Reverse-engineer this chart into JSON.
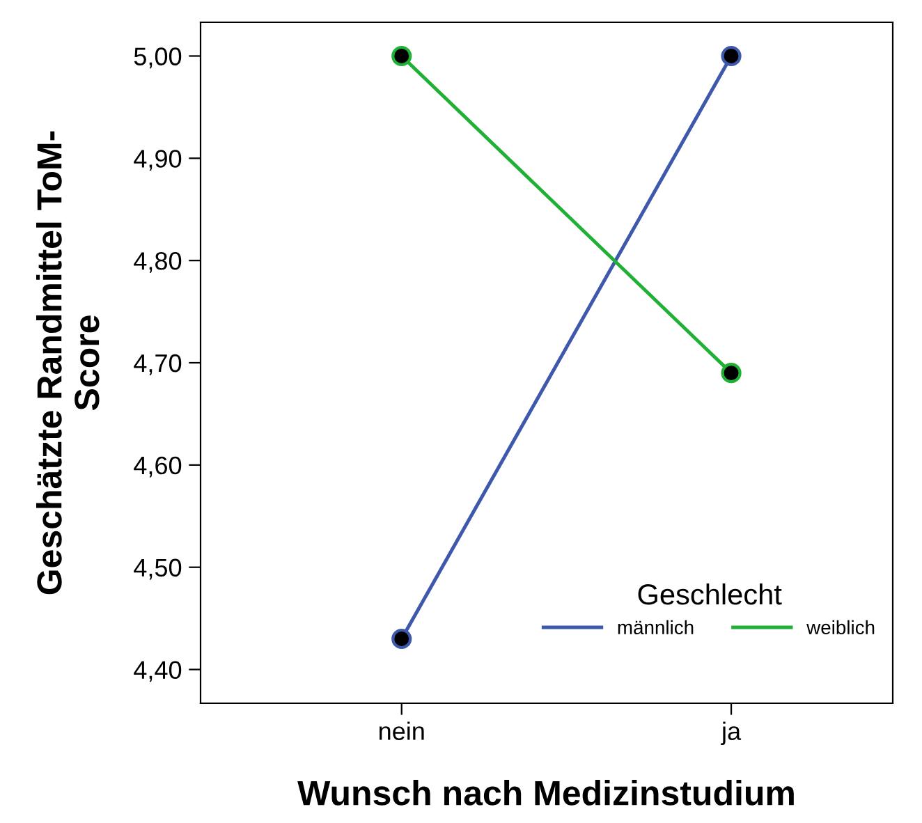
{
  "chart_data": {
    "type": "line",
    "xlabel": "Wunsch nach Medizinstudium",
    "ylabel": "Geschätzte Randmittel ToM-\nScore",
    "legend_title": "Geschlecht",
    "categories": [
      "nein",
      "ja"
    ],
    "series": [
      {
        "name": "männlich",
        "color": "#3e58ac",
        "values": [
          4.43,
          5.0
        ]
      },
      {
        "name": "weiblich",
        "color": "#1fb035",
        "values": [
          5.0,
          4.69
        ]
      }
    ],
    "ylim": [
      4.367,
      5.033
    ],
    "yticks": [
      {
        "value": 4.4,
        "label": "4,40"
      },
      {
        "value": 4.5,
        "label": "4,50"
      },
      {
        "value": 4.6,
        "label": "4,60"
      },
      {
        "value": 4.7,
        "label": "4,70"
      },
      {
        "value": 4.8,
        "label": "4,80"
      },
      {
        "value": 4.9,
        "label": "4,90"
      },
      {
        "value": 5.0,
        "label": "5,00"
      }
    ],
    "grid": false,
    "legend": "bottom right",
    "marker": "circle",
    "line_style": "solid"
  }
}
